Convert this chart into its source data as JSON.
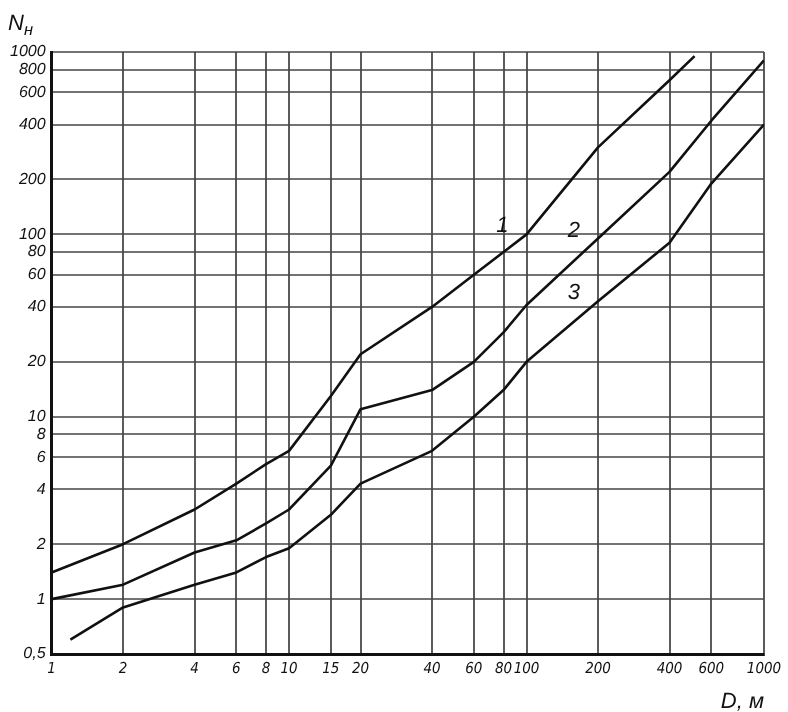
{
  "chart_data": {
    "type": "line",
    "xlabel": "D, м",
    "ylabel": "N$_{н}$",
    "log": "xy",
    "x": [
      1,
      2,
      4,
      6,
      8,
      10,
      15,
      20,
      40,
      60,
      80,
      100,
      200,
      400,
      510
    ],
    "series": [
      {
        "name": "1",
        "color": "#111111",
        "values": [
          1.4,
          2,
          3.1,
          4.3,
          5.5,
          6.5,
          13,
          22,
          40,
          60,
          80,
          100,
          300,
          700,
          950
        ]
      },
      {
        "name": "2",
        "color": "#111111",
        "x": [
          1,
          2,
          4,
          6,
          8,
          10,
          15,
          20,
          40,
          60,
          80,
          100,
          200,
          400,
          600,
          1000
        ],
        "values": [
          1,
          1.2,
          1.8,
          2.1,
          2.6,
          3.1,
          5.4,
          11,
          14,
          20,
          29,
          41,
          95,
          220,
          420,
          900
        ]
      },
      {
        "name": "3",
        "color": "#111111",
        "x": [
          1.2,
          2,
          4,
          6,
          8,
          10,
          15,
          20,
          40,
          60,
          80,
          100,
          200,
          400,
          600,
          1000
        ],
        "values": [
          0.6,
          0.9,
          1.2,
          1.4,
          1.7,
          1.9,
          2.9,
          4.3,
          6.5,
          10,
          14,
          20,
          43,
          90,
          190,
          400
        ]
      }
    ],
    "xlim": [
      1,
      1000
    ],
    "xticks": [
      1,
      2,
      4,
      6,
      8,
      10,
      15,
      20,
      40,
      60,
      80,
      100,
      200,
      400,
      600,
      1000
    ],
    "ylim": [
      0.5,
      1000
    ],
    "yticks": [
      {
        "value": 0.5,
        "label": "0,5"
      },
      1,
      2,
      4,
      6,
      8,
      10,
      20,
      40,
      60,
      80,
      100,
      200,
      400,
      600,
      800,
      1000
    ],
    "grid": true
  }
}
